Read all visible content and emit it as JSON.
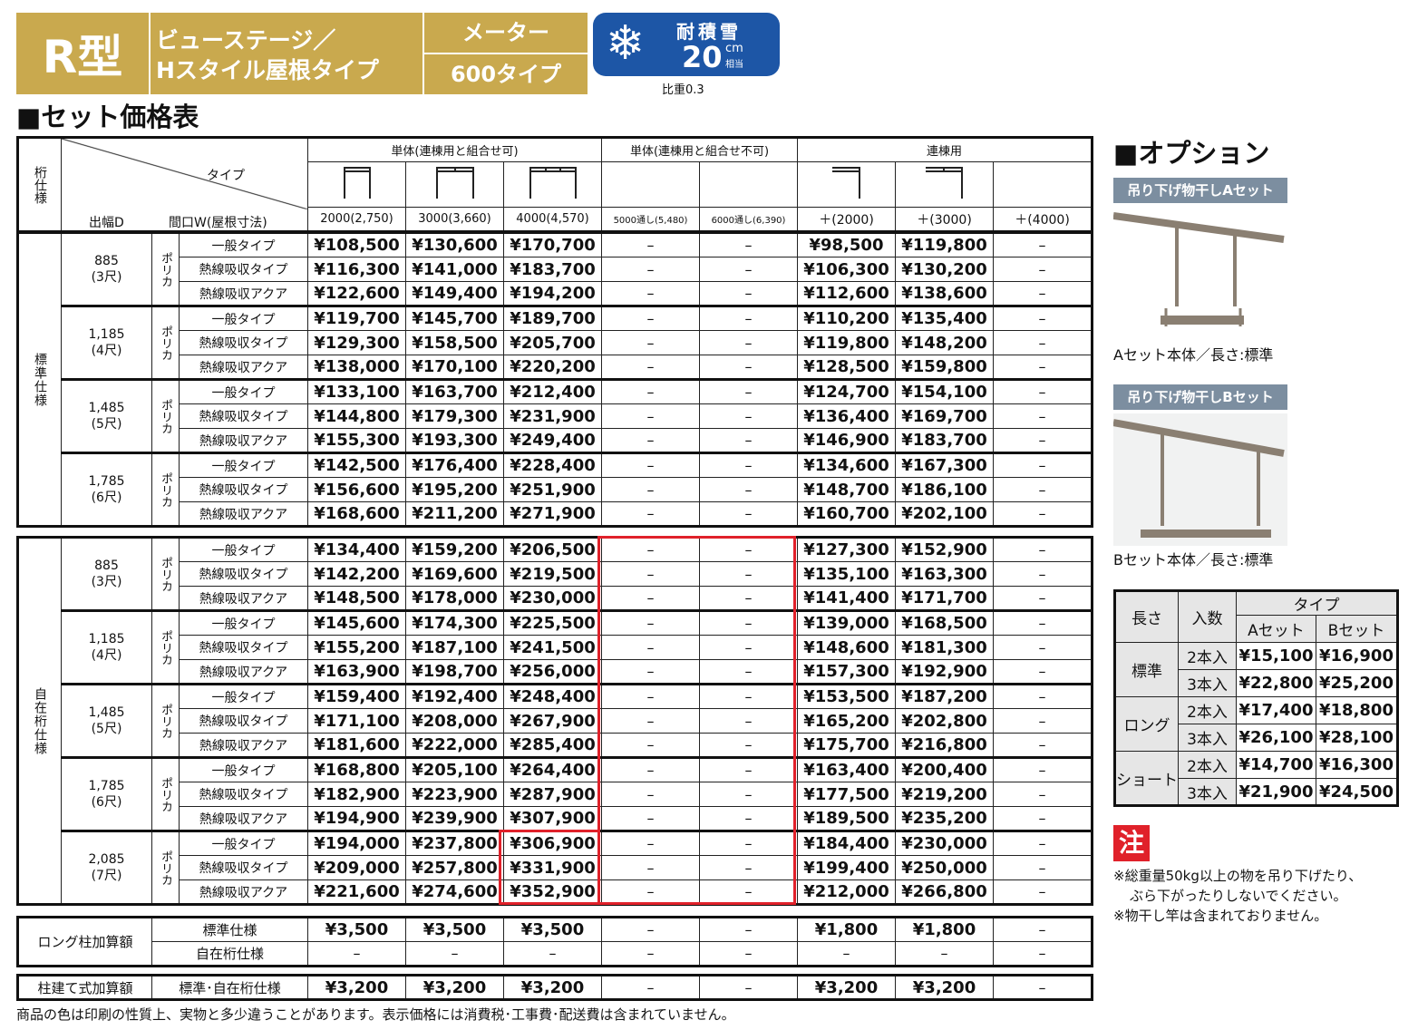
{
  "header": {
    "type_label": "R型",
    "product_line1": "ビューステージ／",
    "product_line2": "Hスタイル屋根タイプ",
    "meter": "メーター",
    "meter_type": "600タイプ",
    "snow_label": "耐積雪",
    "snow_value": "20",
    "snow_unit": "cm",
    "snow_sub": "相当",
    "density": "比重0.3"
  },
  "section_title": "■セット価格表",
  "table": {
    "col_groups": [
      "単体(連棟用と組合せ可)",
      "単体(連棟用と組合せ不可)",
      "連棟用"
    ],
    "corner_left": "桁仕様",
    "corner_type": "タイプ",
    "corner_depth": "出幅D",
    "corner_width": "間口W(屋根寸法)",
    "widths": [
      "2000(2,750)",
      "3000(3,660)",
      "4000(4,570)",
      "5000通し(5,480)",
      "6000通し(6,390)",
      "＋(2000)",
      "＋(3000)",
      "＋(4000)"
    ],
    "dash": "–",
    "sections": [
      {
        "name": "標準仕様",
        "groups": [
          {
            "depth": "885",
            "depth_sub": "(3尺)",
            "material": "ポリカ",
            "rows": [
              [
                "一般タイプ",
                "¥108,500",
                "¥130,600",
                "¥170,700",
                "¥98,500",
                "¥119,800"
              ],
              [
                "熱線吸収タイプ",
                "¥116,300",
                "¥141,000",
                "¥183,700",
                "¥106,300",
                "¥130,200"
              ],
              [
                "熱線吸収アクア",
                "¥122,600",
                "¥149,400",
                "¥194,200",
                "¥112,600",
                "¥138,600"
              ]
            ]
          },
          {
            "depth": "1,185",
            "depth_sub": "(4尺)",
            "material": "ポリカ",
            "rows": [
              [
                "一般タイプ",
                "¥119,700",
                "¥145,700",
                "¥189,700",
                "¥110,200",
                "¥135,400"
              ],
              [
                "熱線吸収タイプ",
                "¥129,300",
                "¥158,500",
                "¥205,700",
                "¥119,800",
                "¥148,200"
              ],
              [
                "熱線吸収アクア",
                "¥138,000",
                "¥170,100",
                "¥220,200",
                "¥128,500",
                "¥159,800"
              ]
            ]
          },
          {
            "depth": "1,485",
            "depth_sub": "(5尺)",
            "material": "ポリカ",
            "rows": [
              [
                "一般タイプ",
                "¥133,100",
                "¥163,700",
                "¥212,400",
                "¥124,700",
                "¥154,100"
              ],
              [
                "熱線吸収タイプ",
                "¥144,800",
                "¥179,300",
                "¥231,900",
                "¥136,400",
                "¥169,700"
              ],
              [
                "熱線吸収アクア",
                "¥155,300",
                "¥193,300",
                "¥249,400",
                "¥146,900",
                "¥183,700"
              ]
            ]
          },
          {
            "depth": "1,785",
            "depth_sub": "(6尺)",
            "material": "ポリカ",
            "rows": [
              [
                "一般タイプ",
                "¥142,500",
                "¥176,400",
                "¥228,400",
                "¥134,600",
                "¥167,300"
              ],
              [
                "熱線吸収タイプ",
                "¥156,600",
                "¥195,200",
                "¥251,900",
                "¥148,700",
                "¥186,100"
              ],
              [
                "熱線吸収アクア",
                "¥168,600",
                "¥211,200",
                "¥271,900",
                "¥160,700",
                "¥202,100"
              ]
            ]
          }
        ]
      },
      {
        "name": "自在桁仕様",
        "groups": [
          {
            "depth": "885",
            "depth_sub": "(3尺)",
            "material": "ポリカ",
            "rows": [
              [
                "一般タイプ",
                "¥134,400",
                "¥159,200",
                "¥206,500",
                "¥127,300",
                "¥152,900"
              ],
              [
                "熱線吸収タイプ",
                "¥142,200",
                "¥169,600",
                "¥219,500",
                "¥135,100",
                "¥163,300"
              ],
              [
                "熱線吸収アクア",
                "¥148,500",
                "¥178,000",
                "¥230,000",
                "¥141,400",
                "¥171,700"
              ]
            ]
          },
          {
            "depth": "1,185",
            "depth_sub": "(4尺)",
            "material": "ポリカ",
            "rows": [
              [
                "一般タイプ",
                "¥145,600",
                "¥174,300",
                "¥225,500",
                "¥139,000",
                "¥168,500"
              ],
              [
                "熱線吸収タイプ",
                "¥155,200",
                "¥187,100",
                "¥241,500",
                "¥148,600",
                "¥181,300"
              ],
              [
                "熱線吸収アクア",
                "¥163,900",
                "¥198,700",
                "¥256,000",
                "¥157,300",
                "¥192,900"
              ]
            ]
          },
          {
            "depth": "1,485",
            "depth_sub": "(5尺)",
            "material": "ポリカ",
            "rows": [
              [
                "一般タイプ",
                "¥159,400",
                "¥192,400",
                "¥248,400",
                "¥153,500",
                "¥187,200"
              ],
              [
                "熱線吸収タイプ",
                "¥171,100",
                "¥208,000",
                "¥267,900",
                "¥165,200",
                "¥202,800"
              ],
              [
                "熱線吸収アクア",
                "¥181,600",
                "¥222,000",
                "¥285,400",
                "¥175,700",
                "¥216,800"
              ]
            ]
          },
          {
            "depth": "1,785",
            "depth_sub": "(6尺)",
            "material": "ポリカ",
            "rows": [
              [
                "一般タイプ",
                "¥168,800",
                "¥205,100",
                "¥264,400",
                "¥163,400",
                "¥200,400"
              ],
              [
                "熱線吸収タイプ",
                "¥182,900",
                "¥223,900",
                "¥287,900",
                "¥177,500",
                "¥219,200"
              ],
              [
                "熱線吸収アクア",
                "¥194,900",
                "¥239,900",
                "¥307,900",
                "¥189,500",
                "¥235,200"
              ]
            ]
          },
          {
            "depth": "2,085",
            "depth_sub": "(7尺)",
            "material": "ポリカ",
            "rows": [
              [
                "一般タイプ",
                "¥194,000",
                "¥237,800",
                "¥306,900",
                "¥184,400",
                "¥230,000"
              ],
              [
                "熱線吸収タイプ",
                "¥209,000",
                "¥257,800",
                "¥331,900",
                "¥199,400",
                "¥250,000"
              ],
              [
                "熱線吸収アクア",
                "¥221,600",
                "¥274,600",
                "¥352,900",
                "¥212,000",
                "¥266,800"
              ]
            ]
          }
        ]
      }
    ],
    "long_label": "ロング柱加算額",
    "long_rows": [
      [
        "標準仕様",
        "¥3,500",
        "¥3,500",
        "¥3,500",
        "¥1,800",
        "¥1,800"
      ],
      [
        "自在桁仕様",
        "–",
        "–",
        "–",
        "–",
        "–"
      ]
    ],
    "pillar_label": "柱建て式加算額",
    "pillar_row": [
      "標準･自在桁仕様",
      "¥3,200",
      "¥3,200",
      "¥3,200",
      "¥3,200",
      "¥3,200"
    ]
  },
  "footer": "商品の色は印刷の性質上、実物と多少違うことがあります。表示価格には消費税･工事費･配送費は含まれていません。",
  "option": {
    "title": "■オプション",
    "a_tag": "吊り下げ物干しAセット",
    "a_caption": "Aセット本体／長さ:標準",
    "b_tag": "吊り下げ物干しBセット",
    "b_caption": "Bセット本体／長さ:標準",
    "h_length": "長さ",
    "h_count": "入数",
    "h_type": "タイプ",
    "h_a": "Aセット",
    "h_b": "Bセット",
    "rows": [
      {
        "len": "標準",
        "items": [
          [
            "2本入",
            "¥15,100",
            "¥16,900"
          ],
          [
            "3本入",
            "¥22,800",
            "¥25,200"
          ]
        ]
      },
      {
        "len": "ロング",
        "items": [
          [
            "2本入",
            "¥17,400",
            "¥18,800"
          ],
          [
            "3本入",
            "¥26,100",
            "¥28,100"
          ]
        ]
      },
      {
        "len": "ショート",
        "items": [
          [
            "2本入",
            "¥14,700",
            "¥16,300"
          ],
          [
            "3本入",
            "¥21,900",
            "¥24,500"
          ]
        ]
      }
    ],
    "note_mark": "注",
    "note1": "※総重量50kg以上の物を吊り下げたり、",
    "note2": "ぶら下がったりしないでください。",
    "note3": "※物干し竿は含まれておりません。"
  },
  "colors": {
    "gold": "#c9a94e",
    "blue": "#1d56a6",
    "red": "#e0212a"
  }
}
